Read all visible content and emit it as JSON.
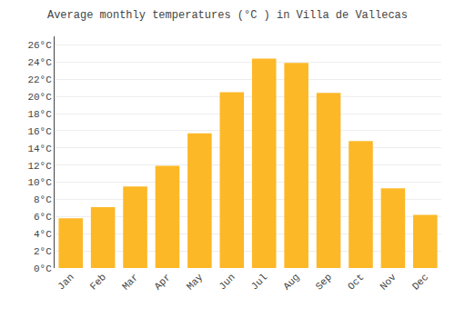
{
  "chart_data": {
    "type": "bar",
    "title": "Average monthly temperatures (°C ) in Villa de Vallecas",
    "categories": [
      "Jan",
      "Feb",
      "Mar",
      "Apr",
      "May",
      "Jun",
      "Jul",
      "Aug",
      "Sep",
      "Oct",
      "Nov",
      "Dec"
    ],
    "values": [
      5.8,
      7.1,
      9.5,
      11.9,
      15.7,
      20.5,
      24.4,
      23.9,
      20.4,
      14.8,
      9.3,
      6.2
    ],
    "color": "#FDB827",
    "ylim": [
      0,
      27
    ],
    "yticks": [
      {
        "value": 0,
        "label": "0°C"
      },
      {
        "value": 2,
        "label": "2°C"
      },
      {
        "value": 4,
        "label": "4°C"
      },
      {
        "value": 6,
        "label": "6°C"
      },
      {
        "value": 8,
        "label": "8°C"
      },
      {
        "value": 10,
        "label": "10°C"
      },
      {
        "value": 12,
        "label": "12°C"
      },
      {
        "value": 14,
        "label": "14°C"
      },
      {
        "value": 16,
        "label": "16°C"
      },
      {
        "value": 18,
        "label": "18°C"
      },
      {
        "value": 20,
        "label": "20°C"
      },
      {
        "value": 22,
        "label": "22°C"
      },
      {
        "value": 24,
        "label": "24°C"
      },
      {
        "value": 26,
        "label": "26°C"
      }
    ],
    "grid": true
  }
}
